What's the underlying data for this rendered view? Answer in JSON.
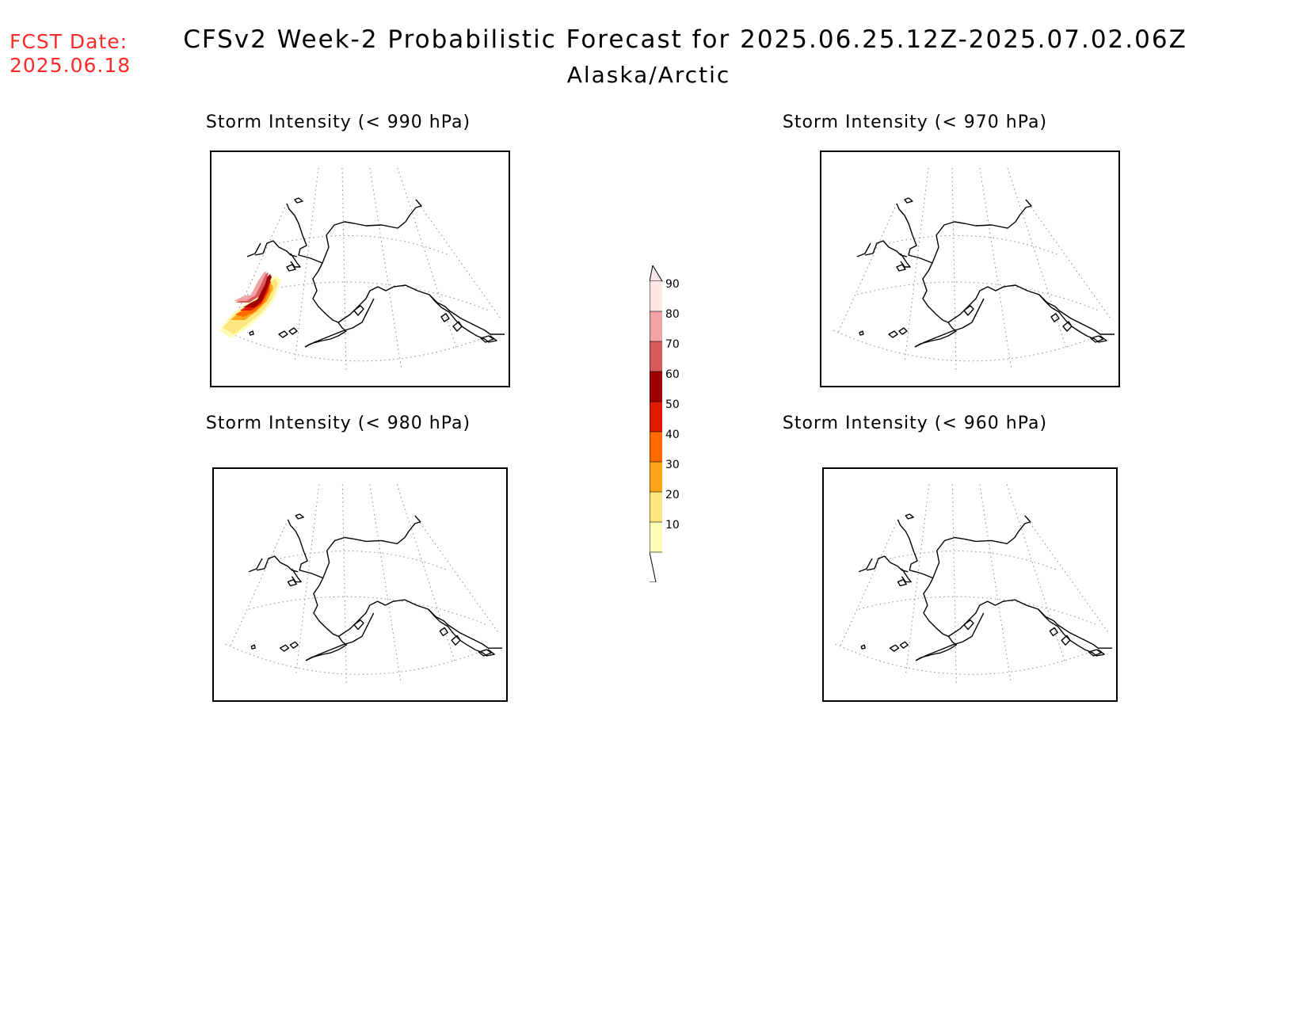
{
  "header": {
    "fcst_label": "FCST Date:",
    "fcst_date": "2025.06.18",
    "title": "CFSv2 Week-2 Probabilistic Forecast for 2025.06.25.12Z-2025.07.02.06Z",
    "region": "Alaska/Arctic"
  },
  "panels": [
    {
      "id": "p990",
      "title": "Storm Intensity (< 990 hPa)",
      "has_storm": true
    },
    {
      "id": "p970",
      "title": "Storm Intensity (< 970 hPa)",
      "has_storm": false
    },
    {
      "id": "p980",
      "title": "Storm Intensity (< 980 hPa)",
      "has_storm": false
    },
    {
      "id": "p960",
      "title": "Storm Intensity (< 960 hPa)",
      "has_storm": false
    }
  ],
  "colorbar": {
    "ticks": [
      "10",
      "20",
      "30",
      "40",
      "50",
      "60",
      "70",
      "80",
      "90"
    ],
    "colors": [
      "#fffcb8",
      "#ffe680",
      "#ffa31a",
      "#ff6a00",
      "#e01a00",
      "#a00000",
      "#d95a5a",
      "#f2a3a3",
      "#fde6e6"
    ]
  }
}
